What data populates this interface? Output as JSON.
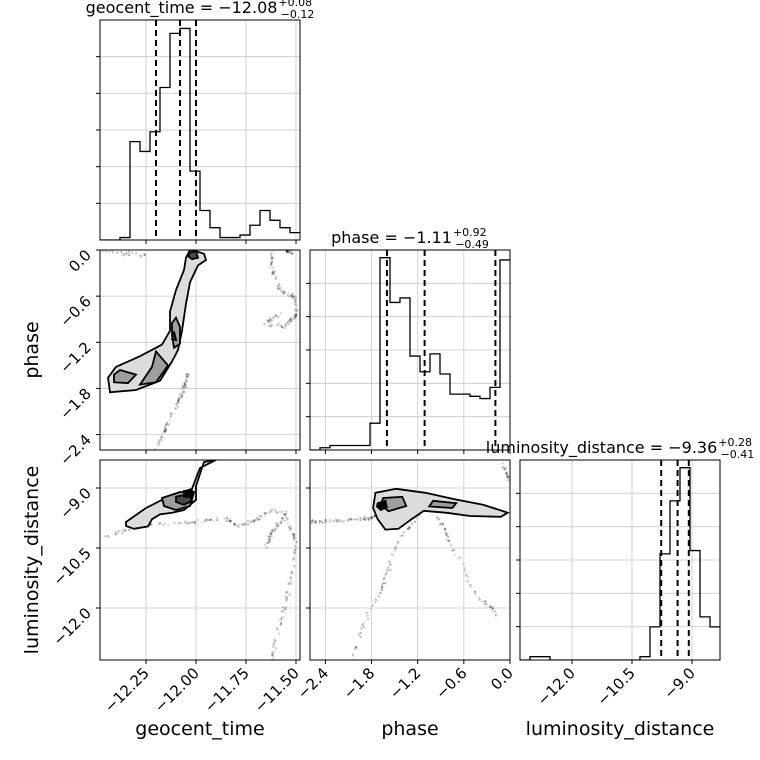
{
  "chart_data": {
    "type": "corner",
    "parameters": [
      "geocent_time",
      "phase",
      "luminosity_distance"
    ],
    "axis_labels": {
      "x": [
        "geocent_time",
        "phase",
        "luminosity_distance"
      ],
      "y": [
        "phase",
        "luminosity_distance"
      ]
    },
    "titles": [
      {
        "text": "geocent_time = −12.08",
        "sup": "+0.08",
        "sub": "−0.12"
      },
      {
        "text": "phase = −1.11",
        "sup": "+0.92",
        "sub": "−0.49"
      },
      {
        "text": "luminosity_distance = −9.36",
        "sup": "+0.28",
        "sub": "−0.41"
      }
    ],
    "ranges": {
      "geocent_time": [
        -12.48,
        -11.48
      ],
      "phase": [
        -2.6,
        0.0
      ],
      "luminosity_distance": [
        -13.3,
        -8.3
      ]
    },
    "ticks": {
      "geocent_time": [
        {
          "v": -12.25,
          "label": "−12.25"
        },
        {
          "v": -12.0,
          "label": "−12.00"
        },
        {
          "v": -11.75,
          "label": "−11.75"
        },
        {
          "v": -11.5,
          "label": "−11.50"
        }
      ],
      "phase": [
        {
          "v": -2.4,
          "label": "−2.4"
        },
        {
          "v": -1.8,
          "label": "−1.8"
        },
        {
          "v": -1.2,
          "label": "−1.2"
        },
        {
          "v": -0.6,
          "label": "−0.6"
        },
        {
          "v": 0.0,
          "label": "0.0"
        }
      ],
      "luminosity_distance": [
        {
          "v": -12.0,
          "label": "−12.0"
        },
        {
          "v": -10.5,
          "label": "−10.5"
        },
        {
          "v": -9.0,
          "label": "−9.0"
        }
      ]
    },
    "grid": true,
    "histograms": {
      "geocent_time": {
        "edges": [
          -12.48,
          -12.43,
          -12.38,
          -12.33,
          -12.28,
          -12.23,
          -12.18,
          -12.13,
          -12.08,
          -12.03,
          -11.98,
          -11.93,
          -11.88,
          -11.83,
          -11.78,
          -11.73,
          -11.68,
          -11.63,
          -11.58,
          -11.53,
          -11.48
        ],
        "counts": [
          0,
          0,
          1,
          40,
          36,
          44,
          62,
          84,
          86,
          28,
          12,
          5,
          1,
          1,
          2,
          6,
          12,
          8,
          5,
          3
        ],
        "quantiles": [
          -12.2,
          -12.08,
          -12.0
        ]
      },
      "phase": {
        "edges": [
          -2.6,
          -2.47,
          -2.34,
          -2.21,
          -2.08,
          -1.95,
          -1.82,
          -1.69,
          -1.56,
          -1.43,
          -1.3,
          -1.17,
          -1.04,
          -0.91,
          -0.78,
          -0.65,
          -0.52,
          -0.39,
          -0.26,
          -0.13,
          0.0
        ],
        "counts": [
          0,
          1,
          2,
          2,
          2,
          2,
          12,
          86,
          66,
          68,
          42,
          35,
          43,
          34,
          25,
          25,
          24,
          23,
          28,
          85
        ],
        "quantiles": [
          -1.6,
          -1.11,
          -0.19
        ]
      },
      "luminosity_distance": {
        "edges": [
          -13.3,
          -13.05,
          -12.8,
          -12.55,
          -12.3,
          -12.05,
          -11.8,
          -11.55,
          -11.3,
          -11.05,
          -10.8,
          -10.55,
          -10.3,
          -10.05,
          -9.8,
          -9.55,
          -9.3,
          -9.05,
          -8.8,
          -8.55,
          -8.3
        ],
        "counts": [
          0,
          1,
          1,
          0,
          0,
          0,
          0,
          0,
          0,
          0,
          0,
          0,
          1,
          10,
          32,
          48,
          58,
          33,
          13,
          10
        ],
        "quantiles": [
          -9.77,
          -9.36,
          -9.08
        ]
      }
    },
    "contours": [
      {
        "row": 1,
        "col": 0,
        "levels": [
          {
            "fill": "#dcdcdc",
            "pts": [
              [
                -12.02,
                0.0
              ],
              [
                -11.96,
                -0.05
              ],
              [
                -11.95,
                -0.13
              ],
              [
                -11.99,
                -0.2
              ],
              [
                -12.03,
                -0.42
              ],
              [
                -12.05,
                -0.7
              ],
              [
                -12.07,
                -1.05
              ],
              [
                -12.09,
                -1.3
              ],
              [
                -12.12,
                -1.45
              ],
              [
                -12.18,
                -1.7
              ],
              [
                -12.3,
                -1.82
              ],
              [
                -12.43,
                -1.85
              ],
              [
                -12.44,
                -1.66
              ],
              [
                -12.4,
                -1.52
              ],
              [
                -12.28,
                -1.38
              ],
              [
                -12.17,
                -1.23
              ],
              [
                -12.13,
                -1.05
              ],
              [
                -12.13,
                -0.8
              ],
              [
                -12.1,
                -0.52
              ],
              [
                -12.06,
                -0.26
              ],
              [
                -12.05,
                -0.1
              ],
              [
                -12.03,
                0.0
              ]
            ]
          },
          {
            "fill": "#9e9e9e",
            "pts": [
              [
                -12.1,
                -0.88
              ],
              [
                -12.08,
                -1.0
              ],
              [
                -12.08,
                -1.22
              ],
              [
                -12.11,
                -1.27
              ],
              [
                -12.12,
                -1.1
              ],
              [
                -12.12,
                -0.95
              ]
            ]
          },
          {
            "fill": "#9e9e9e",
            "pts": [
              [
                -12.2,
                -1.32
              ],
              [
                -12.14,
                -1.5
              ],
              [
                -12.2,
                -1.72
              ],
              [
                -12.28,
                -1.75
              ],
              [
                -12.22,
                -1.52
              ]
            ]
          },
          {
            "fill": "#9e9e9e",
            "pts": [
              [
                -12.38,
                -1.56
              ],
              [
                -12.3,
                -1.62
              ],
              [
                -12.34,
                -1.73
              ],
              [
                -12.41,
                -1.72
              ],
              [
                -12.41,
                -1.62
              ]
            ]
          },
          {
            "fill": "#4a4a4a",
            "pts": [
              [
                -12.03,
                -0.03
              ],
              [
                -12.0,
                -0.02
              ],
              [
                -11.99,
                -0.1
              ],
              [
                -12.02,
                -0.12
              ],
              [
                -12.04,
                -0.08
              ]
            ]
          },
          {
            "fill": "#4a4a4a",
            "pts": [
              [
                -12.11,
                -1.06
              ],
              [
                -12.1,
                -1.17
              ],
              [
                -12.12,
                -1.16
              ]
            ]
          }
        ]
      },
      {
        "row": 2,
        "col": 0,
        "levels": [
          {
            "fill": "#dcdcdc",
            "pts": [
              [
                -12.35,
                -9.85
              ],
              [
                -12.25,
                -9.5
              ],
              [
                -12.14,
                -9.22
              ],
              [
                -12.02,
                -9.02
              ],
              [
                -11.98,
                -8.5
              ],
              [
                -11.9,
                -8.3
              ],
              [
                -11.96,
                -8.35
              ],
              [
                -12.0,
                -8.95
              ],
              [
                -12.0,
                -9.3
              ],
              [
                -12.06,
                -9.55
              ],
              [
                -12.12,
                -9.62
              ],
              [
                -12.18,
                -9.66
              ],
              [
                -12.22,
                -9.78
              ],
              [
                -12.24,
                -9.96
              ],
              [
                -12.31,
                -10.02
              ],
              [
                -12.35,
                -9.95
              ]
            ]
          },
          {
            "fill": "#9e9e9e",
            "pts": [
              [
                -12.17,
                -9.25
              ],
              [
                -12.08,
                -9.1
              ],
              [
                -12.01,
                -9.1
              ],
              [
                -12.03,
                -9.45
              ],
              [
                -12.1,
                -9.55
              ],
              [
                -12.16,
                -9.45
              ]
            ]
          },
          {
            "fill": "#4a4a4a",
            "pts": [
              [
                -12.1,
                -9.22
              ],
              [
                -12.04,
                -9.15
              ],
              [
                -12.02,
                -9.32
              ],
              [
                -12.06,
                -9.42
              ],
              [
                -12.1,
                -9.35
              ]
            ]
          },
          {
            "fill": "#000000",
            "pts": [
              [
                -12.06,
                -9.07
              ],
              [
                -12.02,
                -9.07
              ],
              [
                -12.02,
                -9.22
              ],
              [
                -12.06,
                -9.22
              ]
            ]
          }
        ]
      },
      {
        "row": 2,
        "col": 1,
        "levels": [
          {
            "fill": "#dcdcdc",
            "pts": [
              [
                -1.75,
                -9.12
              ],
              [
                -1.48,
                -9.02
              ],
              [
                -1.1,
                -9.12
              ],
              [
                -0.72,
                -9.28
              ],
              [
                -0.35,
                -9.42
              ],
              [
                -0.12,
                -9.56
              ],
              [
                -0.03,
                -9.62
              ],
              [
                -0.12,
                -9.72
              ],
              [
                -0.52,
                -9.7
              ],
              [
                -0.82,
                -9.62
              ],
              [
                -1.12,
                -9.57
              ],
              [
                -1.28,
                -9.78
              ],
              [
                -1.45,
                -10.02
              ],
              [
                -1.62,
                -10.04
              ],
              [
                -1.72,
                -9.78
              ],
              [
                -1.78,
                -9.5
              ]
            ]
          },
          {
            "fill": "#9e9e9e",
            "pts": [
              [
                -1.65,
                -9.25
              ],
              [
                -1.4,
                -9.22
              ],
              [
                -1.35,
                -9.45
              ],
              [
                -1.58,
                -9.58
              ],
              [
                -1.68,
                -9.42
              ]
            ]
          },
          {
            "fill": "#9e9e9e",
            "pts": [
              [
                -1.0,
                -9.32
              ],
              [
                -0.7,
                -9.38
              ],
              [
                -0.75,
                -9.5
              ],
              [
                -1.05,
                -9.46
              ]
            ]
          },
          {
            "fill": "#000000",
            "pts": [
              [
                -1.72,
                -9.38
              ],
              [
                -1.62,
                -9.32
              ],
              [
                -1.6,
                -9.48
              ],
              [
                -1.68,
                -9.55
              ],
              [
                -1.73,
                -9.46
              ]
            ]
          }
        ]
      }
    ],
    "scatter_paths": [
      {
        "row": 1,
        "col": 0,
        "pts": [
          [
            -12.2,
            -2.6
          ],
          [
            -12.15,
            -2.3
          ],
          [
            -12.1,
            -2.05
          ],
          [
            -12.06,
            -1.8
          ],
          [
            -12.04,
            -1.6
          ]
        ],
        "n": 90
      },
      {
        "row": 1,
        "col": 0,
        "pts": [
          [
            -12.46,
            0.0
          ],
          [
            -12.35,
            -0.05
          ],
          [
            -12.25,
            -0.07
          ]
        ],
        "n": 30
      },
      {
        "row": 1,
        "col": 0,
        "pts": [
          [
            -11.62,
            0.0
          ],
          [
            -11.62,
            -0.2
          ],
          [
            -11.6,
            -0.45
          ],
          [
            -11.56,
            -0.55
          ],
          [
            -11.5,
            -0.62
          ],
          [
            -11.5,
            -0.85
          ],
          [
            -11.56,
            -1.0
          ],
          [
            -11.65,
            -0.95
          ],
          [
            -11.58,
            -0.82
          ]
        ],
        "n": 130
      },
      {
        "row": 1,
        "col": 0,
        "pts": [
          [
            -11.55,
            0.0
          ],
          [
            -11.52,
            -0.05
          ]
        ],
        "n": 20
      },
      {
        "row": 2,
        "col": 0,
        "pts": [
          [
            -12.48,
            -10.25
          ],
          [
            -12.35,
            -10.05
          ],
          [
            -12.2,
            -9.9
          ],
          [
            -12.0,
            -9.85
          ],
          [
            -11.85,
            -9.75
          ],
          [
            -11.8,
            -9.95
          ],
          [
            -11.7,
            -9.8
          ],
          [
            -11.62,
            -9.55
          ],
          [
            -11.55,
            -9.6
          ],
          [
            -11.58,
            -9.85
          ],
          [
            -11.62,
            -10.1
          ],
          [
            -11.65,
            -10.45
          ]
        ],
        "n": 180
      },
      {
        "row": 2,
        "col": 0,
        "pts": [
          [
            -11.55,
            -9.7
          ],
          [
            -11.5,
            -10.3
          ],
          [
            -11.52,
            -11.2
          ],
          [
            -11.56,
            -12.0
          ],
          [
            -11.6,
            -12.8
          ],
          [
            -11.62,
            -13.3
          ]
        ],
        "n": 90
      },
      {
        "row": 2,
        "col": 1,
        "pts": [
          [
            -2.6,
            -9.85
          ],
          [
            -2.3,
            -9.82
          ],
          [
            -2.0,
            -9.78
          ],
          [
            -1.8,
            -9.75
          ],
          [
            -1.7,
            -9.65
          ]
        ],
        "n": 80
      },
      {
        "row": 2,
        "col": 1,
        "pts": [
          [
            -1.15,
            -9.6
          ],
          [
            -1.3,
            -9.95
          ],
          [
            -1.45,
            -10.3
          ],
          [
            -1.55,
            -10.8
          ],
          [
            -1.65,
            -11.5
          ],
          [
            -1.8,
            -12.0
          ],
          [
            -1.95,
            -12.6
          ],
          [
            -2.05,
            -13.3
          ]
        ],
        "n": 90
      },
      {
        "row": 2,
        "col": 1,
        "pts": [
          [
            -0.95,
            -9.7
          ],
          [
            -0.85,
            -10.05
          ],
          [
            -0.75,
            -10.5
          ],
          [
            -0.6,
            -11.0
          ],
          [
            -0.5,
            -11.5
          ],
          [
            -0.3,
            -11.9
          ],
          [
            -0.15,
            -12.2
          ]
        ],
        "n": 70
      },
      {
        "row": 2,
        "col": 1,
        "pts": [
          [
            -0.1,
            -8.4
          ],
          [
            -0.05,
            -8.6
          ],
          [
            0.0,
            -8.8
          ]
        ],
        "n": 25
      }
    ]
  }
}
